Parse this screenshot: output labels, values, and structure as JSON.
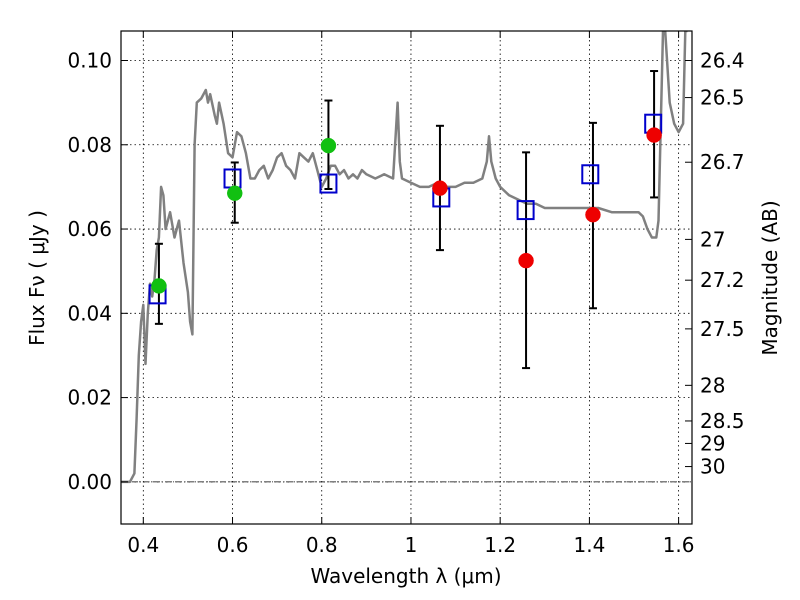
{
  "chart_data": {
    "type": "scatter",
    "xlabel": "Wavelength  λ (μm)",
    "ylabel": "Flux  Fν  ( μJy )",
    "ylabel_right": "Magnitude (AB)",
    "xlim": [
      0.35,
      1.63
    ],
    "ylim": [
      -0.01,
      0.107
    ],
    "x_ticks": [
      0.4,
      0.6,
      0.8,
      1.0,
      1.2,
      1.4,
      1.6
    ],
    "x_tick_labels": [
      "0.4",
      "0.6",
      "0.8",
      "1",
      "1.2",
      "1.4",
      "1.6"
    ],
    "y_ticks": [
      0.0,
      0.02,
      0.04,
      0.06,
      0.08,
      0.1
    ],
    "y_tick_labels": [
      "0.00",
      "0.02",
      "0.04",
      "0.06",
      "0.08",
      "0.10"
    ],
    "right_ticks": [
      {
        "label": "26.4",
        "mag": 26.4
      },
      {
        "label": "26.5",
        "mag": 26.5
      },
      {
        "label": "26.7",
        "mag": 26.7
      },
      {
        "label": "27",
        "mag": 27.0
      },
      {
        "label": "27.2",
        "mag": 27.2
      },
      {
        "label": "27.5",
        "mag": 27.5
      },
      {
        "label": "28",
        "mag": 28.0
      },
      {
        "label": "28.5",
        "mag": 28.5
      },
      {
        "label": "29",
        "mag": 29.0
      },
      {
        "label": "30",
        "mag": 30.0
      }
    ],
    "grid": true,
    "colors": {
      "template": "#808080",
      "green": "#11c011",
      "red": "#ee0000",
      "square": "#0000cc",
      "errorbar": "#000000",
      "zeroline": "#000000"
    },
    "template_spectrum": {
      "x": [
        0.35,
        0.37,
        0.38,
        0.385,
        0.39,
        0.395,
        0.4,
        0.405,
        0.41,
        0.415,
        0.42,
        0.425,
        0.43,
        0.435,
        0.44,
        0.445,
        0.45,
        0.46,
        0.47,
        0.48,
        0.49,
        0.5,
        0.505,
        0.51,
        0.515,
        0.52,
        0.53,
        0.54,
        0.545,
        0.55,
        0.56,
        0.565,
        0.57,
        0.58,
        0.59,
        0.6,
        0.61,
        0.62,
        0.63,
        0.64,
        0.65,
        0.66,
        0.67,
        0.68,
        0.69,
        0.7,
        0.71,
        0.72,
        0.73,
        0.74,
        0.75,
        0.76,
        0.77,
        0.78,
        0.79,
        0.8,
        0.81,
        0.82,
        0.83,
        0.84,
        0.85,
        0.86,
        0.87,
        0.88,
        0.89,
        0.9,
        0.92,
        0.94,
        0.96,
        0.97,
        0.975,
        0.98,
        1.0,
        1.02,
        1.04,
        1.06,
        1.08,
        1.1,
        1.12,
        1.14,
        1.16,
        1.17,
        1.175,
        1.18,
        1.19,
        1.2,
        1.22,
        1.24,
        1.26,
        1.28,
        1.3,
        1.32,
        1.35,
        1.38,
        1.4,
        1.42,
        1.45,
        1.48,
        1.5,
        1.51,
        1.52,
        1.53,
        1.54,
        1.55,
        1.555,
        1.56,
        1.565,
        1.57,
        1.58,
        1.59,
        1.6,
        1.61,
        1.615,
        1.62
      ],
      "y": [
        0.0,
        0.0,
        0.002,
        0.015,
        0.03,
        0.038,
        0.042,
        0.028,
        0.04,
        0.047,
        0.044,
        0.048,
        0.055,
        0.058,
        0.07,
        0.068,
        0.06,
        0.064,
        0.058,
        0.062,
        0.052,
        0.045,
        0.038,
        0.035,
        0.08,
        0.09,
        0.091,
        0.093,
        0.09,
        0.092,
        0.087,
        0.085,
        0.09,
        0.085,
        0.078,
        0.077,
        0.083,
        0.082,
        0.078,
        0.072,
        0.072,
        0.074,
        0.075,
        0.072,
        0.074,
        0.077,
        0.078,
        0.075,
        0.074,
        0.072,
        0.078,
        0.077,
        0.076,
        0.078,
        0.074,
        0.07,
        0.072,
        0.075,
        0.075,
        0.073,
        0.074,
        0.072,
        0.073,
        0.072,
        0.074,
        0.073,
        0.072,
        0.073,
        0.072,
        0.09,
        0.076,
        0.072,
        0.071,
        0.07,
        0.07,
        0.071,
        0.07,
        0.07,
        0.071,
        0.071,
        0.072,
        0.076,
        0.082,
        0.076,
        0.072,
        0.07,
        0.068,
        0.067,
        0.066,
        0.066,
        0.065,
        0.065,
        0.065,
        0.065,
        0.065,
        0.065,
        0.064,
        0.064,
        0.064,
        0.064,
        0.063,
        0.06,
        0.058,
        0.058,
        0.062,
        0.085,
        0.107,
        0.107,
        0.09,
        0.085,
        0.083,
        0.085,
        0.107,
        0.107
      ]
    },
    "series": [
      {
        "marker": "circle",
        "color": "green",
        "points": [
          {
            "x": 0.435,
            "y": 0.0465
          },
          {
            "x": 0.605,
            "y": 0.0685
          },
          {
            "x": 0.815,
            "y": 0.0798
          }
        ]
      },
      {
        "marker": "circle",
        "color": "red",
        "points": [
          {
            "x": 1.065,
            "y": 0.0697
          },
          {
            "x": 1.258,
            "y": 0.0525
          },
          {
            "x": 1.408,
            "y": 0.0634
          },
          {
            "x": 1.545,
            "y": 0.0823
          }
        ]
      },
      {
        "marker": "square",
        "color": "square",
        "points": [
          {
            "x": 0.432,
            "y": 0.0445
          },
          {
            "x": 0.6,
            "y": 0.072
          },
          {
            "x": 0.815,
            "y": 0.0708
          },
          {
            "x": 1.068,
            "y": 0.0675
          },
          {
            "x": 1.257,
            "y": 0.0645
          },
          {
            "x": 1.402,
            "y": 0.073
          },
          {
            "x": 1.543,
            "y": 0.085
          }
        ]
      }
    ],
    "errorbars": [
      {
        "x": 0.435,
        "ylo": 0.0375,
        "yhi": 0.0565
      },
      {
        "x": 0.605,
        "ylo": 0.0615,
        "yhi": 0.0758
      },
      {
        "x": 0.815,
        "ylo": 0.0695,
        "yhi": 0.0905
      },
      {
        "x": 1.065,
        "ylo": 0.055,
        "yhi": 0.0845
      },
      {
        "x": 1.258,
        "ylo": 0.027,
        "yhi": 0.0782
      },
      {
        "x": 1.408,
        "ylo": 0.0412,
        "yhi": 0.0852
      },
      {
        "x": 1.545,
        "ylo": 0.0675,
        "yhi": 0.0975
      }
    ]
  }
}
